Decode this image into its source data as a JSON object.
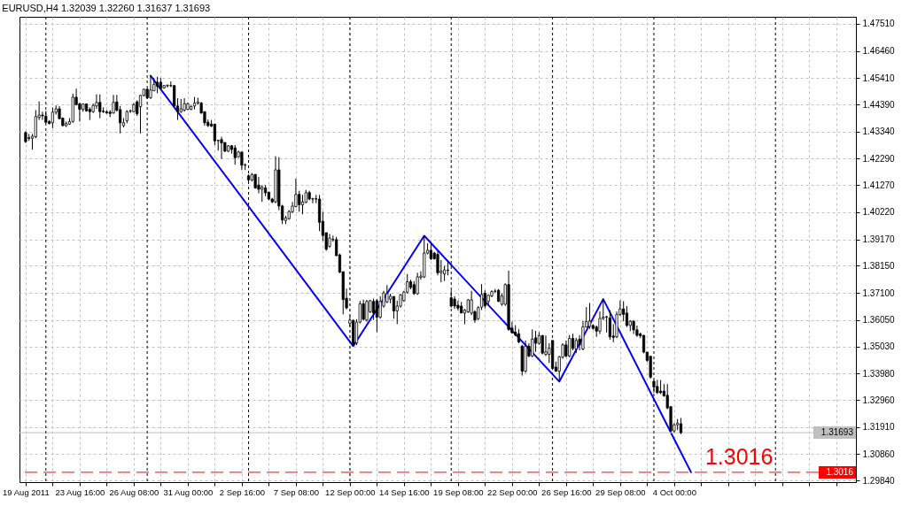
{
  "chart_data": {
    "type": "candlestick",
    "title": "EURUSD,H4 1.32039 1.32260 1.31637 1.31693",
    "categories": [
      "19 Aug 2011",
      null,
      null,
      null,
      null,
      null,
      null,
      null,
      null,
      null,
      null,
      null,
      null,
      null,
      null,
      null,
      "23 Aug 16:00",
      null,
      null,
      null,
      null,
      null,
      null,
      null,
      null,
      null,
      null,
      null,
      null,
      null,
      null,
      null,
      "26 Aug 08:00",
      null,
      null,
      null,
      null,
      null,
      null,
      null,
      null,
      null,
      null,
      null,
      null,
      null,
      null,
      null,
      "31 Aug 00:00",
      null,
      null,
      null,
      null,
      null,
      null,
      null,
      null,
      null,
      null,
      null,
      null,
      null,
      null,
      null,
      "2 Sep 16:00",
      null,
      null,
      null,
      null,
      null,
      null,
      null,
      null,
      null,
      null,
      null,
      null,
      null,
      null,
      null,
      "7 Sep 08:00",
      null,
      null,
      null,
      null,
      null,
      null,
      null,
      null,
      null,
      null,
      null,
      null,
      null,
      null,
      null,
      "12 Sep 00:00",
      null,
      null,
      null,
      null,
      null,
      null,
      null,
      null,
      null,
      null,
      null,
      null,
      null,
      null,
      null,
      "14 Sep 16:00",
      null,
      null,
      null,
      null,
      null,
      null,
      null,
      null,
      null,
      null,
      null,
      null,
      null,
      null,
      null,
      "19 Sep 08:00",
      null,
      null,
      null,
      null,
      null,
      null,
      null,
      null,
      null,
      null,
      null,
      null,
      null,
      null,
      null,
      "22 Sep 00:00",
      null,
      null,
      null,
      null,
      null,
      null,
      null,
      null,
      null,
      null,
      null,
      null,
      null,
      null,
      null,
      "26 Sep 16:00",
      null,
      null,
      null,
      null,
      null,
      null,
      null,
      null,
      null,
      null,
      null,
      null,
      null,
      null,
      null,
      "29 Sep 08:00",
      null,
      null,
      null,
      null,
      null,
      null,
      null,
      null,
      null,
      null,
      null,
      null,
      null,
      null,
      null,
      "4 Oct 00:00",
      null,
      null,
      null,
      null,
      null,
      null,
      null,
      null,
      null,
      null,
      null,
      null,
      null,
      null,
      null,
      null,
      null,
      null,
      null,
      null,
      null,
      null,
      null,
      null,
      null,
      null,
      null,
      null,
      null,
      null,
      null,
      null,
      null,
      null,
      null,
      null,
      null,
      null,
      null,
      null,
      null,
      null,
      null,
      null,
      null,
      null,
      null,
      null,
      null,
      null,
      null,
      null
    ],
    "ohlc": [
      [
        1.433,
        1.4335,
        1.429,
        1.4295
      ],
      [
        1.431,
        1.4325,
        1.4298,
        1.4308
      ],
      [
        1.4308,
        1.4325,
        1.4264,
        1.4316
      ],
      [
        1.4314,
        1.4417,
        1.4308,
        1.4392
      ],
      [
        1.4389,
        1.4451,
        1.4379,
        1.4398
      ],
      [
        1.4398,
        1.4411,
        1.4379,
        1.4395
      ],
      [
        1.4394,
        1.4414,
        1.4368,
        1.437
      ],
      [
        1.4373,
        1.4378,
        1.4362,
        1.4365
      ],
      [
        1.4368,
        1.4427,
        1.4347,
        1.4409
      ],
      [
        1.4409,
        1.4435,
        1.44,
        1.4422
      ],
      [
        1.4422,
        1.4433,
        1.4381,
        1.4384
      ],
      [
        1.4386,
        1.4389,
        1.4355,
        1.4357
      ],
      [
        1.4357,
        1.4373,
        1.4352,
        1.4365
      ],
      [
        1.4363,
        1.4386,
        1.436,
        1.4373
      ],
      [
        1.4373,
        1.4481,
        1.4368,
        1.4467
      ],
      [
        1.4467,
        1.45,
        1.4435,
        1.4438
      ],
      [
        1.4441,
        1.4446,
        1.4373,
        1.442
      ],
      [
        1.442,
        1.4443,
        1.4411,
        1.4441
      ],
      [
        1.4441,
        1.4443,
        1.4411,
        1.4414
      ],
      [
        1.442,
        1.4428,
        1.4379,
        1.4411
      ],
      [
        1.4411,
        1.4443,
        1.4406,
        1.4435
      ],
      [
        1.4433,
        1.4478,
        1.4422,
        1.4447
      ],
      [
        1.4447,
        1.4478,
        1.4386,
        1.4411
      ],
      [
        1.4413,
        1.4428,
        1.4406,
        1.4411
      ],
      [
        1.4411,
        1.4417,
        1.4403,
        1.4406
      ],
      [
        1.4409,
        1.4417,
        1.439,
        1.4404
      ],
      [
        1.4406,
        1.4476,
        1.4403,
        1.4447
      ],
      [
        1.4449,
        1.4476,
        1.4411,
        1.4417
      ],
      [
        1.4419,
        1.4433,
        1.4327,
        1.4368
      ],
      [
        1.4357,
        1.4386,
        1.435,
        1.4368
      ],
      [
        1.4376,
        1.4417,
        1.4366,
        1.4411
      ],
      [
        1.4413,
        1.442,
        1.4406,
        1.4414
      ],
      [
        1.4411,
        1.4444,
        1.4408,
        1.4438
      ],
      [
        1.4449,
        1.4455,
        1.4395,
        1.4403
      ],
      [
        1.443,
        1.4476,
        1.4327,
        1.4474
      ],
      [
        1.4474,
        1.45,
        1.447,
        1.4498
      ],
      [
        1.4498,
        1.45,
        1.446,
        1.4465
      ],
      [
        1.4465,
        1.455,
        1.446,
        1.4495
      ],
      [
        1.4492,
        1.4541,
        1.449,
        1.4517
      ],
      [
        1.4525,
        1.4546,
        1.4482,
        1.4509
      ],
      [
        1.4525,
        1.4541,
        1.4498,
        1.45
      ],
      [
        1.4503,
        1.4514,
        1.45,
        1.4512
      ],
      [
        1.4511,
        1.4517,
        1.4505,
        1.4512
      ],
      [
        1.4512,
        1.4528,
        1.4506,
        1.4511
      ],
      [
        1.4512,
        1.4514,
        1.443,
        1.4433
      ],
      [
        1.4433,
        1.4463,
        1.4379,
        1.4411
      ],
      [
        1.4411,
        1.446,
        1.4406,
        1.4422
      ],
      [
        1.4417,
        1.4463,
        1.4411,
        1.4442
      ],
      [
        1.442,
        1.4446,
        1.4417,
        1.4442
      ],
      [
        1.442,
        1.4435,
        1.4417,
        1.4431
      ],
      [
        1.4433,
        1.4468,
        1.442,
        1.4444
      ],
      [
        1.4444,
        1.4465,
        1.4438,
        1.4449
      ],
      [
        1.4444,
        1.4449,
        1.4403,
        1.4406
      ],
      [
        1.4411,
        1.4411,
        1.4357,
        1.4368
      ],
      [
        1.437,
        1.4381,
        1.4352,
        1.4357
      ],
      [
        1.4363,
        1.4379,
        1.4352,
        1.4355
      ],
      [
        1.4363,
        1.4363,
        1.4282,
        1.4298
      ],
      [
        1.43,
        1.4301,
        1.426,
        1.4299
      ],
      [
        1.4303,
        1.4314,
        1.4228,
        1.429
      ],
      [
        1.4292,
        1.4292,
        1.4255,
        1.4258
      ],
      [
        1.4258,
        1.4282,
        1.4255,
        1.4279
      ],
      [
        1.4279,
        1.4282,
        1.4249,
        1.4265
      ],
      [
        1.4271,
        1.4282,
        1.4206,
        1.4233
      ],
      [
        1.4236,
        1.426,
        1.4233,
        1.4255
      ],
      [
        1.4255,
        1.4255,
        1.4185,
        1.4204
      ],
      [
        1.4204,
        1.4211,
        1.4185,
        1.4205
      ],
      [
        1.4163,
        1.4168,
        1.4141,
        1.4147
      ],
      [
        1.4147,
        1.4174,
        1.4141,
        1.4168
      ],
      [
        1.4168,
        1.417,
        1.4113,
        1.4116
      ],
      [
        1.4127,
        1.4159,
        1.4095,
        1.4111
      ],
      [
        1.4111,
        1.4127,
        1.4062,
        1.4119
      ],
      [
        1.4116,
        1.4127,
        1.4084,
        1.4097
      ],
      [
        1.41,
        1.41,
        1.4068,
        1.4073
      ],
      [
        1.4073,
        1.4078,
        1.4057,
        1.4062
      ],
      [
        1.4062,
        1.4239,
        1.4057,
        1.4186
      ],
      [
        1.4186,
        1.4235,
        1.403,
        1.4046
      ],
      [
        1.4046,
        1.4051,
        1.3976,
        1.3992
      ],
      [
        1.399,
        1.4008,
        1.3976,
        1.4
      ],
      [
        1.3997,
        1.403,
        1.3993,
        1.4025
      ],
      [
        1.4024,
        1.4062,
        1.4019,
        1.4046
      ],
      [
        1.4044,
        1.4152,
        1.4041,
        1.4091
      ],
      [
        1.4091,
        1.4105,
        1.4024,
        1.4051
      ],
      [
        1.4051,
        1.4089,
        1.4014,
        1.4062
      ],
      [
        1.406,
        1.4109,
        1.4057,
        1.4098
      ],
      [
        1.4098,
        1.4105,
        1.4068,
        1.4073
      ],
      [
        1.4073,
        1.4078,
        1.4057,
        1.4074
      ],
      [
        1.4074,
        1.4089,
        1.4057,
        1.4073
      ],
      [
        1.4073,
        1.4089,
        1.3949,
        1.3983
      ],
      [
        1.3987,
        1.4024,
        1.3911,
        1.3932
      ],
      [
        1.3943,
        1.3943,
        1.3873,
        1.3879
      ],
      [
        1.389,
        1.3938,
        1.3884,
        1.3922
      ],
      [
        1.3916,
        1.3932,
        1.3908,
        1.3917
      ],
      [
        1.3916,
        1.3927,
        1.3852,
        1.3854
      ],
      [
        1.3857,
        1.3862,
        1.3787,
        1.379
      ],
      [
        1.3792,
        1.3792,
        1.3627,
        1.3684
      ],
      [
        1.3689,
        1.3727,
        1.3646,
        1.3652
      ],
      [
        1.3592,
        1.3619,
        1.3581,
        1.3605
      ],
      [
        1.3603,
        1.3608,
        1.3504,
        1.3511
      ],
      [
        1.3516,
        1.3608,
        1.3508,
        1.3597
      ],
      [
        1.3597,
        1.3679,
        1.3592,
        1.3668
      ],
      [
        1.3668,
        1.3684,
        1.3603,
        1.3608
      ],
      [
        1.3605,
        1.3683,
        1.3599,
        1.3677
      ],
      [
        1.3637,
        1.3683,
        1.3632,
        1.368
      ],
      [
        1.3677,
        1.3688,
        1.3605,
        1.3632
      ],
      [
        1.368,
        1.3686,
        1.3558,
        1.3616
      ],
      [
        1.3616,
        1.3697,
        1.361,
        1.3677
      ],
      [
        1.3659,
        1.3718,
        1.3653,
        1.371
      ],
      [
        1.3675,
        1.374,
        1.367,
        1.3707
      ],
      [
        1.3686,
        1.3707,
        1.367,
        1.3697
      ],
      [
        1.3696,
        1.3697,
        1.361,
        1.364
      ],
      [
        1.364,
        1.368,
        1.3589,
        1.3659
      ],
      [
        1.3659,
        1.3707,
        1.3653,
        1.3702
      ],
      [
        1.368,
        1.3718,
        1.3675,
        1.3713
      ],
      [
        1.3713,
        1.3783,
        1.3707,
        1.3753
      ],
      [
        1.3753,
        1.3761,
        1.3724,
        1.3731
      ],
      [
        1.3742,
        1.3756,
        1.3702,
        1.3707
      ],
      [
        1.3707,
        1.3788,
        1.3702,
        1.3772
      ],
      [
        1.377,
        1.3794,
        1.3761,
        1.3775
      ],
      [
        1.3772,
        1.3931,
        1.3767,
        1.3864
      ],
      [
        1.3864,
        1.3902,
        1.3859,
        1.3875
      ],
      [
        1.3875,
        1.3902,
        1.3837,
        1.3842
      ],
      [
        1.3864,
        1.3869,
        1.3839,
        1.3842
      ],
      [
        1.3859,
        1.3871,
        1.3778,
        1.3788
      ],
      [
        1.3788,
        1.3837,
        1.3751,
        1.3794
      ],
      [
        1.3783,
        1.3815,
        1.3756,
        1.3799
      ],
      [
        1.3798,
        1.3837,
        1.3778,
        1.3797
      ],
      [
        1.3691,
        1.372,
        1.3653,
        1.3659
      ],
      [
        1.3686,
        1.3697,
        1.3648,
        1.3659
      ],
      [
        1.3662,
        1.368,
        1.3643,
        1.3651
      ],
      [
        1.3659,
        1.3675,
        1.3632,
        1.3632
      ],
      [
        1.3632,
        1.3648,
        1.3589,
        1.3643
      ],
      [
        1.3637,
        1.3686,
        1.3632,
        1.3683
      ],
      [
        1.3632,
        1.3718,
        1.3624,
        1.3683
      ],
      [
        1.3637,
        1.3643,
        1.3594,
        1.3605
      ],
      [
        1.361,
        1.3659,
        1.3605,
        1.3653
      ],
      [
        1.3655,
        1.3744,
        1.3644,
        1.3704
      ],
      [
        1.3709,
        1.372,
        1.365,
        1.366
      ],
      [
        1.3677,
        1.3704,
        1.366,
        1.3701
      ],
      [
        1.3698,
        1.372,
        1.3693,
        1.3715
      ],
      [
        1.3716,
        1.3725,
        1.3709,
        1.3717
      ],
      [
        1.372,
        1.3725,
        1.3675,
        1.3677
      ],
      [
        1.3666,
        1.3709,
        1.366,
        1.3698
      ],
      [
        1.3666,
        1.3747,
        1.366,
        1.3742
      ],
      [
        1.3742,
        1.3796,
        1.3563,
        1.3569
      ],
      [
        1.3574,
        1.3599,
        1.3552,
        1.3556
      ],
      [
        1.3558,
        1.3585,
        1.3542,
        1.3547
      ],
      [
        1.3552,
        1.3569,
        1.3515,
        1.352
      ],
      [
        1.3504,
        1.3509,
        1.339,
        1.3407
      ],
      [
        1.3407,
        1.3526,
        1.3401,
        1.3504
      ],
      [
        1.3504,
        1.3515,
        1.3461,
        1.3466
      ],
      [
        1.3466,
        1.3569,
        1.3461,
        1.3531
      ],
      [
        1.3536,
        1.3563,
        1.3482,
        1.3515
      ],
      [
        1.3515,
        1.3558,
        1.3509,
        1.3545
      ],
      [
        1.3545,
        1.3547,
        1.3472,
        1.3477
      ],
      [
        1.3472,
        1.3545,
        1.3466,
        1.3482
      ],
      [
        1.3472,
        1.3515,
        1.3439,
        1.3496
      ],
      [
        1.3526,
        1.3526,
        1.3412,
        1.3418
      ],
      [
        1.3423,
        1.3444,
        1.3405,
        1.3407
      ],
      [
        1.3407,
        1.3466,
        1.3367,
        1.3463
      ],
      [
        1.3461,
        1.3515,
        1.3455,
        1.3509
      ],
      [
        1.3509,
        1.3526,
        1.3461,
        1.3466
      ],
      [
        1.3466,
        1.3547,
        1.3461,
        1.3534
      ],
      [
        1.3534,
        1.3552,
        1.3488,
        1.3495
      ],
      [
        1.3493,
        1.3536,
        1.3477,
        1.3526
      ],
      [
        1.3531,
        1.3547,
        1.3488,
        1.3509
      ],
      [
        1.3493,
        1.3601,
        1.3488,
        1.3579
      ],
      [
        1.3578,
        1.3655,
        1.3576,
        1.3599
      ],
      [
        1.358,
        1.3671,
        1.3571,
        1.3601
      ],
      [
        1.3584,
        1.3589,
        1.3567,
        1.3573
      ],
      [
        1.3578,
        1.3584,
        1.354,
        1.3562
      ],
      [
        1.3562,
        1.3638,
        1.3551,
        1.3611
      ],
      [
        1.3611,
        1.3686,
        1.3605,
        1.3616
      ],
      [
        1.3616,
        1.3621,
        1.3557,
        1.3618
      ],
      [
        1.3613,
        1.3643,
        1.3529,
        1.354
      ],
      [
        1.3543,
        1.3589,
        1.3519,
        1.3538
      ],
      [
        1.354,
        1.3638,
        1.3535,
        1.3627
      ],
      [
        1.3627,
        1.3681,
        1.3621,
        1.3648
      ],
      [
        1.3648,
        1.3678,
        1.36,
        1.3627
      ],
      [
        1.3632,
        1.3659,
        1.3578,
        1.3584
      ],
      [
        1.3584,
        1.3605,
        1.3562,
        1.36
      ],
      [
        1.36,
        1.3605,
        1.3551,
        1.3567
      ],
      [
        1.3567,
        1.3584,
        1.354,
        1.3546
      ],
      [
        1.3551,
        1.3557,
        1.3535,
        1.3544
      ],
      [
        1.3546,
        1.3546,
        1.3476,
        1.3481
      ],
      [
        1.3481,
        1.3481,
        1.3443,
        1.3449
      ],
      [
        1.3465,
        1.3465,
        1.3378,
        1.3384
      ],
      [
        1.3368,
        1.3373,
        1.3324,
        1.3346
      ],
      [
        1.3348,
        1.3373,
        1.3319,
        1.3324
      ],
      [
        1.333,
        1.3373,
        1.3319,
        1.3324
      ],
      [
        1.333,
        1.3357,
        1.3308,
        1.3312
      ],
      [
        1.3314,
        1.3357,
        1.326,
        1.3265
      ],
      [
        1.327,
        1.327,
        1.3173,
        1.3176
      ],
      [
        1.3176,
        1.3206,
        1.317,
        1.32
      ],
      [
        1.32,
        1.3222,
        1.3179,
        1.3206
      ],
      [
        1.32039,
        1.3226,
        1.31637,
        1.31693
      ],
      null,
      null,
      null,
      null,
      null,
      null,
      null,
      null,
      null,
      null,
      null,
      null,
      null,
      null,
      null,
      null,
      null,
      null,
      null,
      null,
      null,
      null,
      null,
      null,
      null,
      null,
      null,
      null,
      null,
      null,
      null,
      null,
      null,
      null,
      null,
      null,
      null,
      null,
      null,
      null,
      null,
      null,
      null,
      null,
      null,
      null,
      null,
      null,
      null,
      null
    ],
    "series": [
      {
        "type": "line",
        "color": "#0000ff",
        "values": [
          null,
          null,
          null,
          null,
          null,
          null,
          null,
          null,
          null,
          null,
          null,
          null,
          null,
          null,
          null,
          null,
          null,
          null,
          null,
          null,
          null,
          null,
          null,
          null,
          null,
          null,
          null,
          null,
          null,
          null,
          null,
          null,
          null,
          null,
          null,
          null,
          null,
          1.455,
          null,
          null,
          null,
          null,
          null,
          null,
          null,
          null,
          null,
          null,
          null,
          null,
          null,
          null,
          null,
          null,
          null,
          null,
          null,
          null,
          null,
          null,
          null,
          null,
          null,
          null,
          null,
          null,
          null,
          null,
          null,
          null,
          null,
          null,
          null,
          null,
          null,
          null,
          null,
          null,
          null,
          null,
          null,
          null,
          null,
          null,
          null,
          null,
          null,
          null,
          null,
          null,
          null,
          null,
          null,
          null,
          null,
          null,
          null,
          1.3504,
          null,
          null,
          null,
          null,
          null,
          null,
          null,
          null,
          null,
          null,
          null,
          null,
          null,
          null,
          null,
          null,
          null,
          null,
          null,
          null,
          1.3931,
          null,
          null,
          null,
          null,
          null,
          null,
          null,
          null,
          null,
          null,
          null,
          null,
          null,
          null,
          null,
          null,
          null,
          null,
          null,
          null,
          null,
          null,
          null,
          null,
          null,
          null,
          null,
          null,
          null,
          null,
          null,
          null,
          null,
          null,
          null,
          null,
          null,
          null,
          null,
          1.3367,
          null,
          null,
          null,
          null,
          null,
          null,
          null,
          null,
          null,
          null,
          null,
          null,
          1.3686,
          null,
          null,
          null,
          null,
          null,
          null,
          null,
          null,
          null,
          null,
          null,
          null,
          null,
          null,
          null,
          null,
          null,
          null,
          null,
          null,
          null,
          null,
          null,
          null,
          null,
          1.3016,
          null,
          null,
          null,
          null,
          null,
          null,
          null,
          null,
          null,
          null,
          null,
          null,
          null,
          null,
          null,
          null,
          null,
          null,
          null,
          null,
          null,
          null,
          null,
          null,
          null,
          null,
          null,
          null,
          null,
          null,
          null,
          null,
          null,
          null,
          null,
          null,
          null,
          null,
          null,
          null,
          null,
          null,
          null,
          null,
          null,
          null,
          null
        ]
      }
    ],
    "ylim": [
      1.2978,
      1.4778
    ],
    "yticks": [
      {
        "value": 1.4751,
        "label": "1.47510"
      },
      {
        "value": 1.4646,
        "label": "1.46460"
      },
      {
        "value": 1.4541,
        "label": "1.45410"
      },
      {
        "value": 1.4439,
        "label": "1.44390"
      },
      {
        "value": 1.4334,
        "label": "1.43340"
      },
      {
        "value": 1.4229,
        "label": "1.42290"
      },
      {
        "value": 1.4127,
        "label": "1.41270"
      },
      {
        "value": 1.4022,
        "label": "1.40220"
      },
      {
        "value": 1.3917,
        "label": "1.39170"
      },
      {
        "value": 1.3815,
        "label": "1.38150"
      },
      {
        "value": 1.371,
        "label": "1.37100"
      },
      {
        "value": 1.3605,
        "label": "1.36050"
      },
      {
        "value": 1.3503,
        "label": "1.35030"
      },
      {
        "value": 1.3398,
        "label": "1.33980"
      },
      {
        "value": 1.3296,
        "label": "1.32960"
      },
      {
        "value": 1.3191,
        "label": "1.31910"
      },
      {
        "value": 1.3086,
        "label": "1.30860"
      },
      {
        "value": 1.2984,
        "label": "1.29840"
      }
    ],
    "grid": true,
    "ref_lines": [
      {
        "axis": "y",
        "value": 1.31693,
        "label": "1.31693",
        "color": "#c0c0c0",
        "line_style": "solid"
      },
      {
        "axis": "y",
        "value": 1.3016,
        "label": "1.3016",
        "color": "#ff0000",
        "line_style": "dashed"
      }
    ],
    "annotations": [
      {
        "text": "1.3016",
        "y": 1.3016
      }
    ]
  }
}
